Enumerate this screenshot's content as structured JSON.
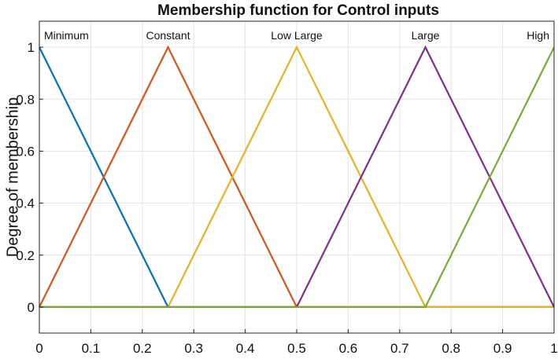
{
  "chart_data": {
    "type": "line",
    "title": "Membership function for Control inputs",
    "xlabel": "",
    "ylabel": "Degree of membership",
    "xlim": [
      0,
      1
    ],
    "ylim": [
      -0.1,
      1.1
    ],
    "xticks": [
      0,
      0.1,
      0.2,
      0.3,
      0.4,
      0.5,
      0.6,
      0.7,
      0.8,
      0.9,
      1
    ],
    "yticks": [
      0,
      0.2,
      0.4,
      0.6,
      0.8,
      1
    ],
    "xtick_labels": [
      "0",
      "0.1",
      "0.2",
      "0.3",
      "0.4",
      "0.5",
      "0.6",
      "0.7",
      "0.8",
      "0.9",
      "1"
    ],
    "ytick_labels": [
      "0",
      "0.2",
      "0.4",
      "0.6",
      "0.8",
      "1"
    ],
    "grid": true,
    "series": [
      {
        "name": "Minimum",
        "color": "#0072BD",
        "x": [
          0,
          0.25,
          1
        ],
        "y": [
          1,
          0,
          0
        ]
      },
      {
        "name": "Constant",
        "color": "#D95319",
        "x": [
          0,
          0.25,
          0.5,
          1
        ],
        "y": [
          0,
          1,
          0,
          0
        ]
      },
      {
        "name": "Low Large",
        "color": "#EDB120",
        "x": [
          0,
          0.25,
          0.5,
          0.75,
          1
        ],
        "y": [
          0,
          0,
          1,
          0,
          0
        ]
      },
      {
        "name": "Large",
        "color": "#7E2F8E",
        "x": [
          0,
          0.5,
          0.75,
          1
        ],
        "y": [
          0,
          0,
          1,
          0
        ]
      },
      {
        "name": "High",
        "color": "#77AC30",
        "x": [
          0,
          0.75,
          1
        ],
        "y": [
          0,
          0,
          1
        ]
      }
    ]
  }
}
